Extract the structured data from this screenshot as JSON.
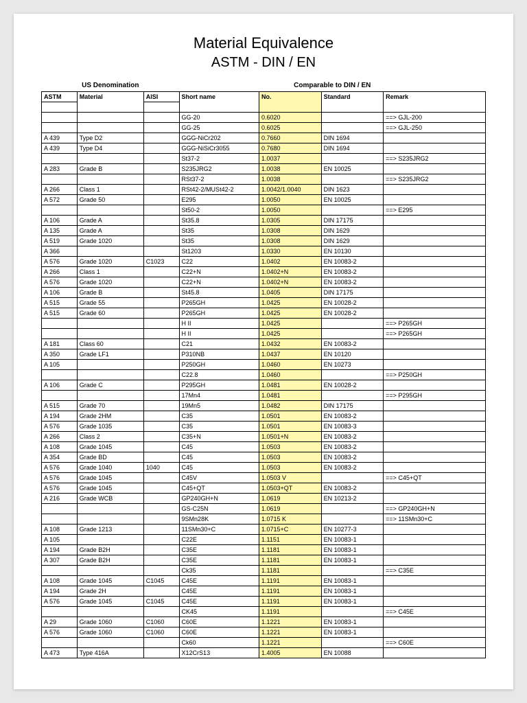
{
  "title_line1": "Material Equivalence",
  "title_line2": "ASTM  -  DIN / EN",
  "section_us": "US Denomination",
  "section_din": "Comparable to DIN / EN",
  "columns": {
    "astm": "ASTM",
    "material": "Material",
    "aisi": "AISI",
    "shortname": "Short name",
    "no": "No.",
    "standard": "Standard",
    "remark": "Remark"
  },
  "colors": {
    "highlight": "#fff9b0",
    "page_bg": "#ffffff",
    "body_bg": "#e8e8e8",
    "border": "#000000"
  },
  "rows": [
    {
      "astm": "",
      "material": "",
      "aisi": "",
      "short": "GG-20",
      "no": "0.6020",
      "std": "",
      "rem": "==> GJL-200"
    },
    {
      "astm": "",
      "material": "",
      "aisi": "",
      "short": "GG-25",
      "no": "0.6025",
      "std": "",
      "rem": "==> GJL-250"
    },
    {
      "astm": "A 439",
      "material": "Type D2",
      "aisi": "",
      "short": "GGG-NiCr202",
      "no": "0.7660",
      "std": "DIN 1694",
      "rem": ""
    },
    {
      "astm": "A 439",
      "material": "Type D4",
      "aisi": "",
      "short": "GGG-NiSiCr3055",
      "no": "0.7680",
      "std": "DIN 1694",
      "rem": ""
    },
    {
      "astm": "",
      "material": "",
      "aisi": "",
      "short": "St37-2",
      "no": "1.0037",
      "std": "",
      "rem": "==> S235JRG2"
    },
    {
      "astm": "A 283",
      "material": "Grade B",
      "aisi": "",
      "short": "S235JRG2",
      "no": "1.0038",
      "std": "EN 10025",
      "rem": ""
    },
    {
      "astm": "",
      "material": "",
      "aisi": "",
      "short": "RSt37-2",
      "no": "1.0038",
      "std": "",
      "rem": "==> S235JRG2"
    },
    {
      "astm": "A 266",
      "material": "Class 1",
      "aisi": "",
      "short": "RSt42-2/MUSt42-2",
      "no": "1.0042/1.0040",
      "std": "DIN 1623",
      "rem": ""
    },
    {
      "astm": "A 572",
      "material": "Grade 50",
      "aisi": "",
      "short": "E295",
      "no": "1.0050",
      "std": "EN 10025",
      "rem": ""
    },
    {
      "astm": "",
      "material": "",
      "aisi": "",
      "short": "St50-2",
      "no": "1.0050",
      "std": "",
      "rem": "==> E295"
    },
    {
      "astm": "A 106",
      "material": "Grade A",
      "aisi": "",
      "short": "St35.8",
      "no": "1.0305",
      "std": "DIN 17175",
      "rem": ""
    },
    {
      "astm": "A 135",
      "material": "Grade A",
      "aisi": "",
      "short": "St35",
      "no": "1.0308",
      "std": "DIN 1629",
      "rem": ""
    },
    {
      "astm": "A 519",
      "material": "Grade 1020",
      "aisi": "",
      "short": "St35",
      "no": "1.0308",
      "std": "DIN 1629",
      "rem": ""
    },
    {
      "astm": "A 366",
      "material": "",
      "aisi": "",
      "short": "St1203",
      "no": "1.0330",
      "std": "EN 10130",
      "rem": ""
    },
    {
      "astm": "A 576",
      "material": "Grade 1020",
      "aisi": "C1023",
      "short": "C22",
      "no": "1.0402",
      "std": "EN 10083-2",
      "rem": ""
    },
    {
      "astm": "A 266",
      "material": "Class 1",
      "aisi": "",
      "short": "C22+N",
      "no": "1.0402+N",
      "std": "EN 10083-2",
      "rem": ""
    },
    {
      "astm": "A 576",
      "material": "Grade 1020",
      "aisi": "",
      "short": "C22+N",
      "no": "1.0402+N",
      "std": "EN 10083-2",
      "rem": ""
    },
    {
      "astm": "A 106",
      "material": "Grade B",
      "aisi": "",
      "short": "St45.8",
      "no": "1.0405",
      "std": "DIN 17175",
      "rem": ""
    },
    {
      "astm": "A 515",
      "material": "Grade 55",
      "aisi": "",
      "short": "P265GH",
      "no": "1.0425",
      "std": "EN 10028-2",
      "rem": ""
    },
    {
      "astm": "A 515",
      "material": "Grade 60",
      "aisi": "",
      "short": "P265GH",
      "no": "1.0425",
      "std": "EN 10028-2",
      "rem": ""
    },
    {
      "astm": "",
      "material": "",
      "aisi": "",
      "short": "H II",
      "no": "1.0425",
      "std": "",
      "rem": "==> P265GH"
    },
    {
      "astm": "",
      "material": "",
      "aisi": "",
      "short": "H II",
      "no": "1.0425",
      "std": "",
      "rem": "==> P265GH"
    },
    {
      "astm": "A 181",
      "material": "Class 60",
      "aisi": "",
      "short": "C21",
      "no": "1.0432",
      "std": "EN 10083-2",
      "rem": ""
    },
    {
      "astm": "A 350",
      "material": "Grade LF1",
      "aisi": "",
      "short": "P310NB",
      "no": "1.0437",
      "std": "EN 10120",
      "rem": ""
    },
    {
      "astm": "A 105",
      "material": "",
      "aisi": "",
      "short": "P250GH",
      "no": "1.0460",
      "std": "EN 10273",
      "rem": ""
    },
    {
      "astm": "",
      "material": "",
      "aisi": "",
      "short": "C22.8",
      "no": "1.0460",
      "std": "",
      "rem": "==> P250GH"
    },
    {
      "astm": "A 106",
      "material": "Grade C",
      "aisi": "",
      "short": "P295GH",
      "no": "1.0481",
      "std": "EN 10028-2",
      "rem": ""
    },
    {
      "astm": "",
      "material": "",
      "aisi": "",
      "short": "17Mn4",
      "no": "1.0481",
      "std": "",
      "rem": "==> P295GH"
    },
    {
      "astm": "A 515",
      "material": "Grade 70",
      "aisi": "",
      "short": "19Mn5",
      "no": "1.0482",
      "std": "DIN 17175",
      "rem": ""
    },
    {
      "astm": "A 194",
      "material": "Grade 2HM",
      "aisi": "",
      "short": "C35",
      "no": "1.0501",
      "std": "EN 10083-2",
      "rem": ""
    },
    {
      "astm": "A 576",
      "material": "Grade 1035",
      "aisi": "",
      "short": "C35",
      "no": "1.0501",
      "std": "EN 10083-3",
      "rem": ""
    },
    {
      "astm": "A 266",
      "material": "Class 2",
      "aisi": "",
      "short": "C35+N",
      "no": "1.0501+N",
      "std": "EN 10083-2",
      "rem": ""
    },
    {
      "astm": "A 108",
      "material": "Grade 1045",
      "aisi": "",
      "short": "C45",
      "no": "1.0503",
      "std": "EN 10083-2",
      "rem": ""
    },
    {
      "astm": "A 354",
      "material": "Grade BD",
      "aisi": "",
      "short": "C45",
      "no": "1.0503",
      "std": "EN 10083-2",
      "rem": ""
    },
    {
      "astm": "A 576",
      "material": "Grade 1040",
      "aisi": "1040",
      "short": "C45",
      "no": "1.0503",
      "std": "EN 10083-2",
      "rem": ""
    },
    {
      "astm": "A 576",
      "material": "Grade 1045",
      "aisi": "",
      "short": "C45V",
      "no": "1.0503 V",
      "std": "",
      "rem": "==> C45+QT"
    },
    {
      "astm": "A 576",
      "material": "Grade 1045",
      "aisi": "",
      "short": "C45+QT",
      "no": "1.0503+QT",
      "std": "EN 10083-2",
      "rem": ""
    },
    {
      "astm": "A 216",
      "material": "Grade WCB",
      "aisi": "",
      "short": "GP240GH+N",
      "no": "1.0619",
      "std": "EN 10213-2",
      "rem": ""
    },
    {
      "astm": "",
      "material": "",
      "aisi": "",
      "short": "GS-C25N",
      "no": "1.0619",
      "std": "",
      "rem": "==> GP240GH+N"
    },
    {
      "astm": "",
      "material": "",
      "aisi": "",
      "short": "9SMn28K",
      "no": "1.0715 K",
      "std": "",
      "rem": "==> 11SMn30+C"
    },
    {
      "astm": "A 108",
      "material": "Grade 1213",
      "aisi": "",
      "short": "11SMn30+C",
      "no": "1.0715+C",
      "std": "EN 10277-3",
      "rem": ""
    },
    {
      "astm": "A 105",
      "material": "",
      "aisi": "",
      "short": "C22E",
      "no": "1.1151",
      "std": "EN 10083-1",
      "rem": ""
    },
    {
      "astm": "A 194",
      "material": "Grade B2H",
      "aisi": "",
      "short": "C35E",
      "no": "1.1181",
      "std": "EN 10083-1",
      "rem": ""
    },
    {
      "astm": "A 307",
      "material": "Grade B2H",
      "aisi": "",
      "short": "C35E",
      "no": "1.1181",
      "std": "EN 10083-1",
      "rem": ""
    },
    {
      "astm": "",
      "material": "",
      "aisi": "",
      "short": "Ck35",
      "no": "1.1181",
      "std": "",
      "rem": "==> C35E"
    },
    {
      "astm": "A 108",
      "material": "Grade 1045",
      "aisi": "C1045",
      "short": "C45E",
      "no": "1.1191",
      "std": "EN 10083-1",
      "rem": ""
    },
    {
      "astm": "A 194",
      "material": "Grade 2H",
      "aisi": "",
      "short": "C45E",
      "no": "1.1191",
      "std": "EN 10083-1",
      "rem": ""
    },
    {
      "astm": "A 576",
      "material": "Grade 1045",
      "aisi": "C1045",
      "short": "C45E",
      "no": "1.1191",
      "std": "EN 10083-1",
      "rem": ""
    },
    {
      "astm": "",
      "material": "",
      "aisi": "",
      "short": "CK45",
      "no": "1.1191",
      "std": "",
      "rem": "==> C45E"
    },
    {
      "astm": "A  29",
      "material": "Grade 1060",
      "aisi": "C1060",
      "short": "C60E",
      "no": "1.1221",
      "std": "EN 10083-1",
      "rem": ""
    },
    {
      "astm": "A 576",
      "material": "Grade 1060",
      "aisi": "C1060",
      "short": "C60E",
      "no": "1.1221",
      "std": "EN 10083-1",
      "rem": ""
    },
    {
      "astm": "",
      "material": "",
      "aisi": "",
      "short": "Ck60",
      "no": "1.1221",
      "std": "",
      "rem": "==> C60E"
    },
    {
      "astm": "A 473",
      "material": "Type 416A",
      "aisi": "",
      "short": "X12CrS13",
      "no": "1.4005",
      "std": "EN 10088",
      "rem": ""
    }
  ]
}
